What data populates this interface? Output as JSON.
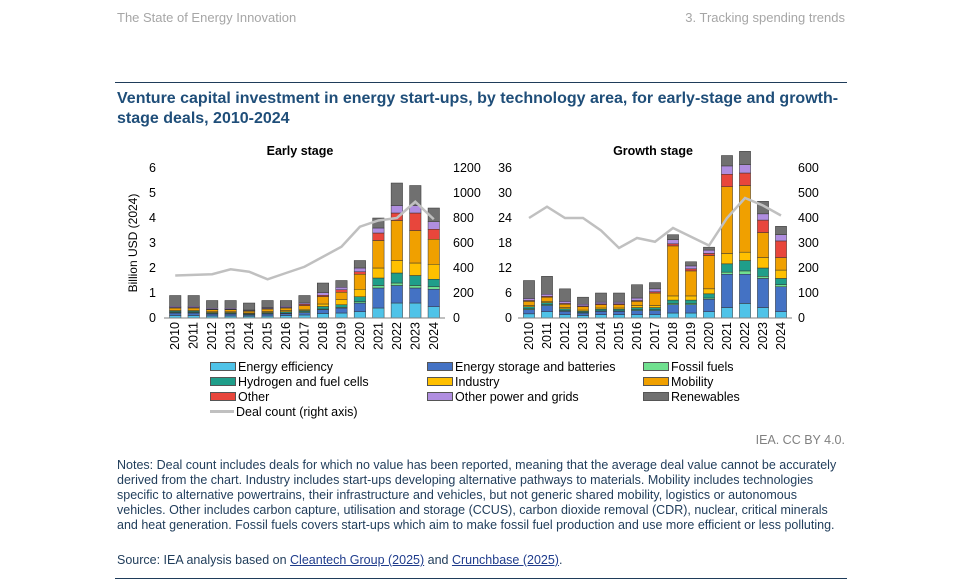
{
  "header": {
    "left": "The State of Energy Innovation",
    "right": "3. Tracking spending trends"
  },
  "title": "Venture capital investment in energy start-ups, by technology area, for early-stage and growth-stage deals, 2010-2024",
  "ylabel_left": "Billion USD (2024)",
  "credit": "IEA. CC BY 4.0.",
  "notes": "Notes: Deal count includes deals for which no value has been reported, meaning that the average deal value cannot be accurately derived from the chart. Industry includes start-ups developing alternative pathways to materials. Mobility includes technologies specific to alternative powertrains, their infrastructure and vehicles, but not generic shared mobility, logistics or autonomous vehicles. Other includes carbon capture, utilisation and storage (CCUS), carbon dioxide removal (CDR), nuclear, critical minerals and heat generation. Fossil fuels covers start-ups which aim to make fossil fuel production and use more efficient or less polluting.",
  "source": {
    "prefix": "Source: IEA analysis based on ",
    "link1": "Cleantech Group (2025)",
    "middle": " and ",
    "link2": "Crunchbase (2025)",
    "suffix": "."
  },
  "legend": [
    {
      "label": "Energy efficiency",
      "color": "#4fc3e8"
    },
    {
      "label": "Energy storage and batteries",
      "color": "#4472c4"
    },
    {
      "label": "Fossil fuels",
      "color": "#70e08f"
    },
    {
      "label": "Hydrogen and fuel cells",
      "color": "#1f9e8a"
    },
    {
      "label": "Industry",
      "color": "#ffc000"
    },
    {
      "label": "Mobility",
      "color": "#f0a000"
    },
    {
      "label": "Other",
      "color": "#e8463c"
    },
    {
      "label": "Other power and grids",
      "color": "#b08ee0"
    },
    {
      "label": "Renewables",
      "color": "#707070"
    },
    {
      "label": "Deal count (right axis)",
      "color": "#c0c0c0",
      "line": true
    }
  ],
  "chart_data": [
    {
      "type": "bar",
      "title": "Early stage",
      "stacked": true,
      "categories": [
        "2010",
        "2011",
        "2012",
        "2013",
        "2014",
        "2015",
        "2016",
        "2017",
        "2018",
        "2019",
        "2020",
        "2021",
        "2022",
        "2023",
        "2024"
      ],
      "ylim": [
        0,
        6
      ],
      "yticks": [
        0,
        1,
        2,
        3,
        4,
        5,
        6
      ],
      "y2lim": [
        0,
        1200
      ],
      "y2ticks": [
        0,
        200,
        400,
        600,
        800,
        1000,
        1200
      ],
      "series": [
        {
          "name": "Energy efficiency",
          "values": [
            0.1,
            0.1,
            0.08,
            0.08,
            0.07,
            0.08,
            0.1,
            0.12,
            0.18,
            0.2,
            0.25,
            0.4,
            0.6,
            0.6,
            0.45
          ]
        },
        {
          "name": "Energy storage and batteries",
          "values": [
            0.1,
            0.1,
            0.08,
            0.08,
            0.05,
            0.08,
            0.08,
            0.1,
            0.15,
            0.2,
            0.35,
            0.8,
            0.7,
            0.6,
            0.7
          ]
        },
        {
          "name": "Fossil fuels",
          "values": [
            0.02,
            0.02,
            0.02,
            0.02,
            0.02,
            0.02,
            0.02,
            0.03,
            0.03,
            0.03,
            0.05,
            0.1,
            0.1,
            0.1,
            0.1
          ]
        },
        {
          "name": "Hydrogen and fuel cells",
          "values": [
            0.05,
            0.05,
            0.04,
            0.04,
            0.03,
            0.04,
            0.05,
            0.05,
            0.1,
            0.1,
            0.2,
            0.3,
            0.4,
            0.4,
            0.3
          ]
        },
        {
          "name": "Industry",
          "values": [
            0.03,
            0.03,
            0.03,
            0.03,
            0.03,
            0.04,
            0.05,
            0.05,
            0.1,
            0.2,
            0.3,
            0.4,
            0.5,
            0.5,
            0.6
          ]
        },
        {
          "name": "Mobility",
          "values": [
            0.1,
            0.1,
            0.08,
            0.08,
            0.07,
            0.1,
            0.1,
            0.15,
            0.3,
            0.3,
            0.6,
            1.1,
            1.6,
            1.3,
            1.0
          ]
        },
        {
          "name": "Other",
          "values": [
            0.02,
            0.02,
            0.02,
            0.02,
            0.02,
            0.02,
            0.02,
            0.05,
            0.05,
            0.1,
            0.1,
            0.3,
            0.3,
            0.7,
            0.4
          ]
        },
        {
          "name": "Other power and grids",
          "values": [
            0.05,
            0.05,
            0.04,
            0.04,
            0.03,
            0.04,
            0.05,
            0.05,
            0.1,
            0.1,
            0.15,
            0.2,
            0.3,
            0.3,
            0.3
          ]
        },
        {
          "name": "Renewables",
          "values": [
            0.43,
            0.43,
            0.31,
            0.31,
            0.28,
            0.28,
            0.23,
            0.3,
            0.39,
            0.27,
            0.3,
            0.4,
            0.9,
            0.8,
            0.55
          ]
        }
      ],
      "line": {
        "name": "Deal count (right axis)",
        "values": [
          340,
          345,
          350,
          390,
          370,
          310,
          360,
          410,
          490,
          570,
          730,
          780,
          800,
          930,
          790
        ]
      }
    },
    {
      "type": "bar",
      "title": "Growth stage",
      "stacked": true,
      "categories": [
        "2010",
        "2011",
        "2012",
        "2013",
        "2014",
        "2015",
        "2016",
        "2017",
        "2018",
        "2019",
        "2020",
        "2021",
        "2022",
        "2023",
        "2024"
      ],
      "ylim": [
        0,
        36
      ],
      "yticks": [
        0,
        6,
        12,
        18,
        24,
        30,
        36
      ],
      "y2lim": [
        0,
        600
      ],
      "y2ticks": [
        0,
        100,
        200,
        300,
        400,
        500,
        600
      ],
      "series": [
        {
          "name": "Energy efficiency",
          "values": [
            1.0,
            1.5,
            0.8,
            0.6,
            0.8,
            0.8,
            0.8,
            0.8,
            1.2,
            1.2,
            1.5,
            2.5,
            3.5,
            2.5,
            1.5
          ]
        },
        {
          "name": "Energy storage and batteries",
          "values": [
            1.0,
            1.5,
            0.8,
            0.6,
            0.8,
            0.8,
            1.0,
            1.0,
            2.0,
            2.0,
            3.0,
            8.0,
            7.0,
            7.0,
            6.0
          ]
        },
        {
          "name": "Fossil fuels",
          "values": [
            0.2,
            0.2,
            0.2,
            0.1,
            0.1,
            0.1,
            0.2,
            0.2,
            0.3,
            0.3,
            0.3,
            0.5,
            0.8,
            0.5,
            0.5
          ]
        },
        {
          "name": "Hydrogen and fuel cells",
          "values": [
            0.5,
            0.5,
            0.4,
            0.3,
            0.4,
            0.4,
            0.5,
            0.5,
            0.8,
            0.8,
            1.0,
            2.0,
            2.5,
            2.0,
            1.5
          ]
        },
        {
          "name": "Industry",
          "values": [
            0.3,
            0.3,
            0.3,
            0.3,
            0.3,
            0.3,
            0.5,
            0.5,
            1.0,
            1.0,
            1.2,
            2.5,
            2.0,
            2.5,
            2.0
          ]
        },
        {
          "name": "Mobility",
          "values": [
            1.0,
            1.0,
            0.8,
            0.8,
            0.8,
            0.8,
            1.0,
            3.0,
            12.0,
            6.0,
            8.0,
            16.0,
            16.0,
            6.0,
            3.0
          ]
        },
        {
          "name": "Other",
          "values": [
            0.2,
            0.2,
            0.2,
            0.2,
            0.2,
            0.2,
            0.2,
            0.3,
            0.5,
            0.5,
            0.5,
            3.0,
            3.0,
            3.0,
            4.0
          ]
        },
        {
          "name": "Other power and grids",
          "values": [
            0.5,
            0.5,
            0.5,
            0.4,
            0.4,
            0.4,
            0.6,
            0.7,
            1.0,
            0.7,
            0.8,
            2.0,
            2.0,
            1.5,
            1.5
          ]
        },
        {
          "name": "Renewables",
          "values": [
            4.3,
            4.3,
            3.0,
            1.7,
            2.2,
            2.2,
            3.2,
            1.5,
            1.2,
            1.0,
            0.7,
            2.5,
            3.2,
            3.0,
            2.0
          ]
        }
      ],
      "line": {
        "name": "Deal count (right axis)",
        "values": [
          400,
          445,
          400,
          400,
          350,
          280,
          320,
          305,
          360,
          325,
          290,
          400,
          480,
          450,
          410
        ]
      }
    }
  ]
}
